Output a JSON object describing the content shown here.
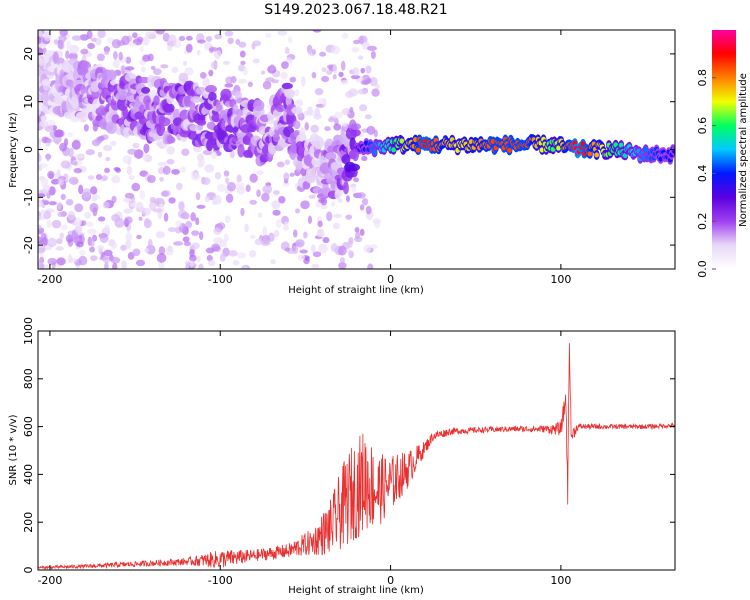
{
  "title": "S149.2023.067.18.48.R21",
  "chart_data": [
    {
      "type": "heatmap",
      "xlabel": "Height of straight line (km)",
      "ylabel": "Frequency (Hz)",
      "xlim": [
        -207,
        167
      ],
      "ylim": [
        -25,
        25
      ],
      "xticks": [
        -200,
        -100,
        0,
        100
      ],
      "xtick_labels": [
        "-200",
        "-100",
        "0",
        "100"
      ],
      "yticks": [
        -20,
        -10,
        0,
        10,
        20
      ],
      "ytick_labels": [
        "-20",
        "-10",
        "0",
        "10",
        "20"
      ],
      "colorbar": {
        "label": "Normalized spectral amplitude",
        "range": [
          0,
          1
        ],
        "ticks": [
          0.0,
          0.2,
          0.4,
          0.6,
          0.8
        ],
        "tick_labels": [
          "0.0",
          "0.2",
          "0.4",
          "0.6",
          "0.8"
        ],
        "colormap": [
          "#ffffff",
          "#e8d8f8",
          "#a040f0",
          "#5a00e0",
          "#0018ff",
          "#00c8ff",
          "#00ff60",
          "#f0ff00",
          "#ff8000",
          "#ff0000",
          "#ff00a0"
        ]
      },
      "ridge": [
        {
          "x": -200,
          "y": 14,
          "level": 0.12
        },
        {
          "x": -170,
          "y": 11,
          "level": 0.18
        },
        {
          "x": -150,
          "y": 9,
          "level": 0.22
        },
        {
          "x": -130,
          "y": 8,
          "level": 0.22
        },
        {
          "x": -110,
          "y": 7,
          "level": 0.22
        },
        {
          "x": -90,
          "y": 6,
          "level": 0.22
        },
        {
          "x": -75,
          "y": 3,
          "level": 0.2
        },
        {
          "x": -60,
          "y": 8,
          "level": 0.22
        },
        {
          "x": -50,
          "y": -3,
          "level": 0.18
        },
        {
          "x": -35,
          "y": -5,
          "level": 0.16
        },
        {
          "x": -20,
          "y": 0,
          "level": 0.3
        },
        {
          "x": -10,
          "y": 0.5,
          "level": 0.45
        },
        {
          "x": 0,
          "y": 1,
          "level": 0.55
        },
        {
          "x": 20,
          "y": 1,
          "level": 0.9
        },
        {
          "x": 40,
          "y": 1,
          "level": 0.7
        },
        {
          "x": 60,
          "y": 1,
          "level": 0.85
        },
        {
          "x": 80,
          "y": 1,
          "level": 0.85
        },
        {
          "x": 95,
          "y": 1,
          "level": 0.6
        },
        {
          "x": 110,
          "y": 0,
          "level": 0.95
        },
        {
          "x": 130,
          "y": 0,
          "level": 0.6
        },
        {
          "x": 150,
          "y": -1,
          "level": 0.45
        },
        {
          "x": 167,
          "y": -1,
          "level": 0.35
        }
      ]
    },
    {
      "type": "line",
      "xlabel": "Height of straight line (km)",
      "ylabel": "SNR (10 * v/v)",
      "xlim": [
        -207,
        167
      ],
      "ylim": [
        0,
        1000
      ],
      "xticks": [
        -200,
        -100,
        0,
        100
      ],
      "xtick_labels": [
        "-200",
        "-100",
        "0",
        "100"
      ],
      "yticks": [
        0,
        200,
        400,
        600,
        800,
        1000
      ],
      "ytick_labels": [
        "0",
        "200",
        "400",
        "600",
        "800",
        "1000"
      ],
      "line_color": "#e83030",
      "series": [
        {
          "x": [
            -207,
            -180,
            -150,
            -120,
            -100,
            -80,
            -60,
            -45,
            -35,
            -25,
            -15,
            -8,
            0,
            10,
            20,
            25,
            35,
            50,
            70,
            90,
            100,
            103,
            104,
            105,
            106,
            110,
            130,
            150,
            167
          ],
          "y": [
            10,
            15,
            25,
            35,
            45,
            60,
            80,
            120,
            180,
            300,
            380,
            330,
            360,
            420,
            510,
            560,
            580,
            585,
            590,
            590,
            590,
            720,
            300,
            980,
            560,
            600,
            600,
            600,
            605
          ],
          "noise": [
            5,
            8,
            12,
            15,
            40,
            25,
            30,
            60,
            120,
            200,
            220,
            160,
            120,
            80,
            30,
            20,
            15,
            12,
            12,
            15,
            30,
            60,
            40,
            60,
            40,
            12,
            10,
            10,
            10
          ]
        }
      ]
    }
  ]
}
